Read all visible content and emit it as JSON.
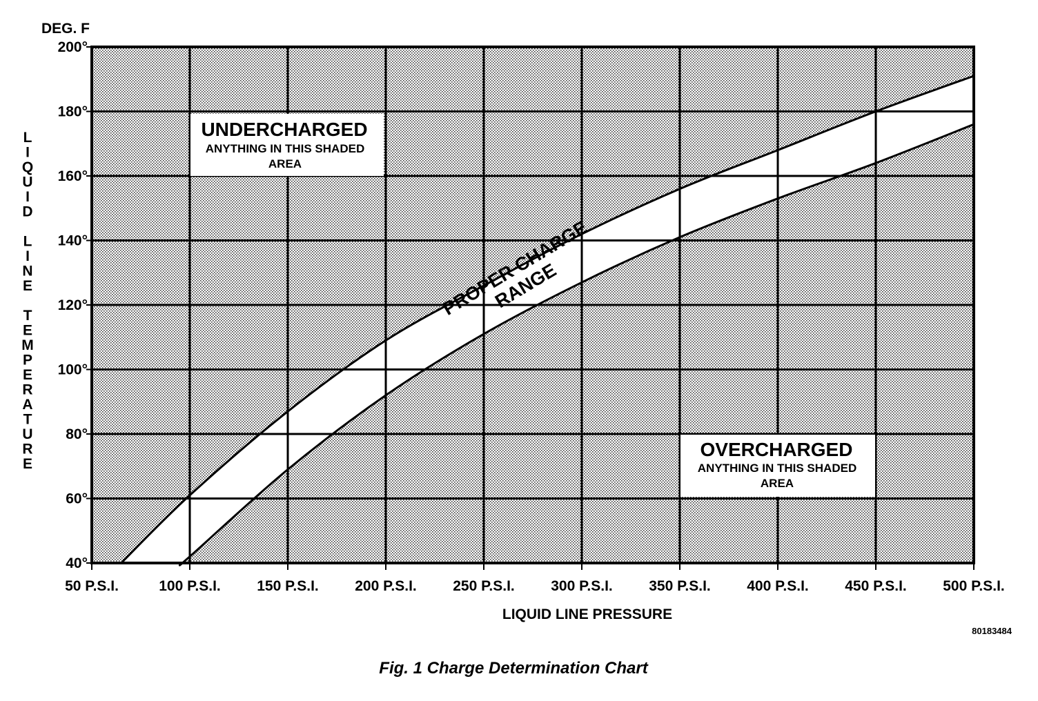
{
  "chart_data": {
    "type": "line",
    "title": "",
    "xlabel": "LIQUID LINE PRESSURE",
    "ylabel": "LIQUID LINE TEMPERATURE",
    "y_unit_label": "DEG. F",
    "xlim": [
      50,
      500
    ],
    "ylim": [
      40,
      200
    ],
    "x_ticks": [
      50,
      100,
      150,
      200,
      250,
      300,
      350,
      400,
      450,
      500
    ],
    "x_tick_labels": [
      "50 P.S.I.",
      "100 P.S.I.",
      "150 P.S.I.",
      "200 P.S.I.",
      "250 P.S.I.",
      "300 P.S.I.",
      "350 P.S.I.",
      "400 P.S.I.",
      "450 P.S.I.",
      "500 P.S.I."
    ],
    "y_ticks": [
      40,
      60,
      80,
      100,
      120,
      140,
      160,
      180,
      200
    ],
    "y_tick_labels": [
      "40°",
      "60°",
      "80°",
      "100°",
      "120°",
      "140°",
      "160°",
      "180°",
      "200°"
    ],
    "grid": true,
    "series": [
      {
        "boundary": "upper",
        "x": [
          65,
          100,
          150,
          200,
          250,
          300,
          350,
          400,
          450,
          500
        ],
        "y": [
          40,
          61,
          87,
          109,
          126,
          142,
          156,
          168,
          180,
          191
        ]
      },
      {
        "boundary": "lower",
        "x": [
          96,
          100,
          150,
          200,
          250,
          300,
          350,
          400,
          450,
          500
        ],
        "y": [
          40,
          42,
          69,
          92,
          111,
          127,
          141,
          153,
          164,
          176
        ]
      }
    ],
    "annotations": {
      "undercharged": {
        "title": "UNDERCHARGED",
        "line1": "ANYTHING IN THIS SHADED",
        "line2": "AREA"
      },
      "overcharged": {
        "title": "OVERCHARGED",
        "line1": "ANYTHING IN THIS SHADED",
        "line2": "AREA"
      },
      "proper_band": {
        "line1": "PROPER CHARGE",
        "line2": "RANGE"
      }
    },
    "figure_id": "80183484",
    "caption": "Fig. 1 Charge Determination Chart"
  }
}
